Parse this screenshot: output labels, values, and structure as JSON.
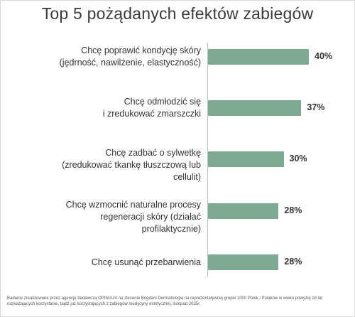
{
  "chart_data": {
    "type": "bar",
    "orientation": "horizontal",
    "title": "Top 5 pożądanych efektów zabiegów",
    "categories": [
      [
        "Chcę poprawić kondycję skóry",
        "(jędrność, nawilżenie, elastyczność)"
      ],
      [
        "Chcę odmłodzić się",
        "i zredukować zmarszczki"
      ],
      [
        "Chcę zadbać o sylwetkę",
        "(zredukować tkankę tłuszczową lub cellulit)"
      ],
      [
        "Chcę wzmocnić naturalne procesy",
        "regeneracji skóry (działać profilaktycznie)"
      ],
      [
        "Chcę usunąć przebarwienia"
      ]
    ],
    "values": [
      40,
      37,
      30,
      28,
      28
    ],
    "value_labels": [
      "40%",
      "37%",
      "30%",
      "28%",
      "28%"
    ],
    "unit": "%",
    "grid": false,
    "bar_color": "#7ea992"
  },
  "footnote": "Badanie zrealizowane przez agencję badawczą OPINIA24 na zlecenie Bogdani Dermatologia na reprezentatywnej grupie 1000 Polek i Polaków w wieku powyżej 18 lat rozważających korzystanie, bądź już korzystających z zabiegów medycyny estetycznej, listopad 2025r."
}
